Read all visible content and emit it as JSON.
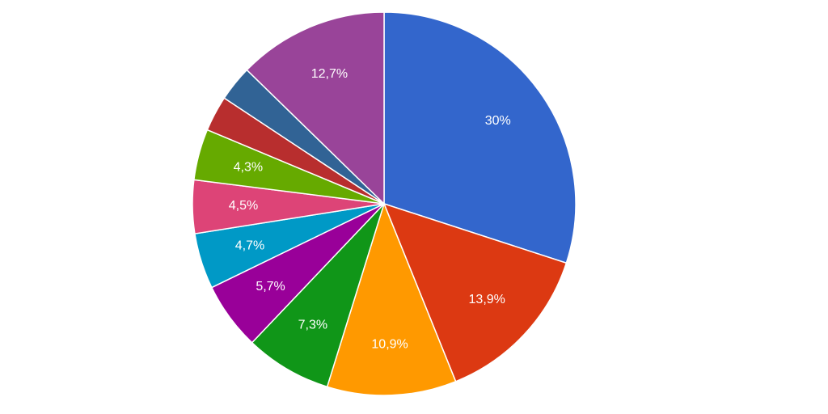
{
  "chart_data": {
    "type": "pie",
    "start_angle_deg": 0,
    "direction": "clockwise",
    "slices": [
      {
        "value": 30.0,
        "label": "30%",
        "color": "#3366cc"
      },
      {
        "value": 13.9,
        "label": "13,9%",
        "color": "#dc3912"
      },
      {
        "value": 10.9,
        "label": "10,9%",
        "color": "#ff9900"
      },
      {
        "value": 7.3,
        "label": "7,3%",
        "color": "#109618"
      },
      {
        "value": 5.7,
        "label": "5,7%",
        "color": "#990099"
      },
      {
        "value": 4.7,
        "label": "4,7%",
        "color": "#0099c6"
      },
      {
        "value": 4.5,
        "label": "4,5%",
        "color": "#dd4477"
      },
      {
        "value": 4.3,
        "label": "4,3%",
        "color": "#66aa00"
      },
      {
        "value": 3.0,
        "label": "",
        "color": "#b82e2e"
      },
      {
        "value": 3.0,
        "label": "",
        "color": "#316395"
      },
      {
        "value": 12.7,
        "label": "12,7%",
        "color": "#994499"
      }
    ]
  }
}
